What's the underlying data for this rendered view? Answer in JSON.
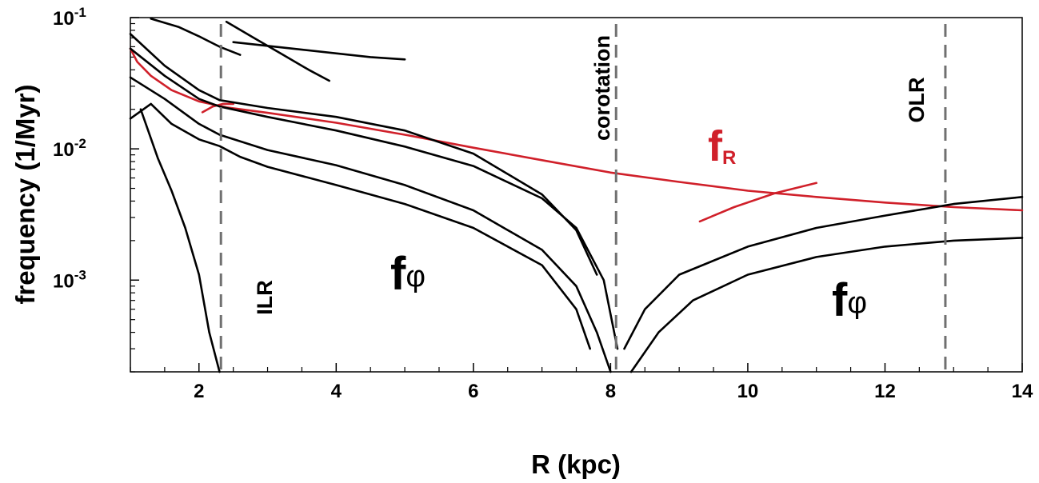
{
  "chart_data": {
    "type": "line",
    "xlabel": "R (kpc)",
    "ylabel": "frequency (1/Myr)",
    "xlim": [
      1,
      14
    ],
    "ylim": [
      0.0002,
      0.1
    ],
    "yscale": "log",
    "xticks": [
      {
        "value": 2,
        "label": "2"
      },
      {
        "value": 4,
        "label": "4"
      },
      {
        "value": 6,
        "label": "6"
      },
      {
        "value": 8,
        "label": "8"
      },
      {
        "value": 10,
        "label": "10"
      },
      {
        "value": 12,
        "label": "12"
      },
      {
        "value": 14,
        "label": "14"
      }
    ],
    "yticks": [
      {
        "value": 0.1,
        "base": "10",
        "exp": "-1"
      },
      {
        "value": 0.01,
        "base": "10",
        "exp": "-2"
      },
      {
        "value": 0.001,
        "base": "10",
        "exp": "-3"
      }
    ],
    "colors": {
      "f_phi": "#000000",
      "f_R": "#d0202a",
      "resonance": "#707070"
    },
    "resonances": [
      {
        "x": 2.32,
        "label": "ILR"
      },
      {
        "x": 8.08,
        "label": "corotation"
      },
      {
        "x": 12.88,
        "label": "OLR"
      }
    ],
    "annotations": [
      {
        "key": "fr",
        "main": "f",
        "sub": "R",
        "color": "#d0202a"
      },
      {
        "key": "fphi1",
        "main": "f",
        "sub": "φ",
        "color": "#000000"
      },
      {
        "key": "fphi2",
        "main": "f",
        "sub": "φ",
        "color": "#000000"
      }
    ],
    "series": [
      {
        "color": "#d0202a",
        "x": [
          1,
          1.1,
          1.3,
          1.6,
          2.0,
          2.4,
          3,
          4,
          5,
          6,
          7,
          8,
          9,
          10,
          11,
          12,
          13,
          14
        ],
        "y": [
          0.058,
          0.046,
          0.036,
          0.028,
          0.023,
          0.0207,
          0.0188,
          0.0158,
          0.0128,
          0.0102,
          0.0082,
          0.0066,
          0.0056,
          0.0048,
          0.0043,
          0.0039,
          0.0036,
          0.0034
        ]
      },
      {
        "color": "#d0202a",
        "x": [
          9.3,
          9.8,
          10.4,
          11.0
        ],
        "y": [
          0.0028,
          0.0036,
          0.0046,
          0.0055
        ]
      },
      {
        "color": "#d0202a",
        "x": [
          2.05,
          2.2,
          2.35,
          2.5
        ],
        "y": [
          0.019,
          0.021,
          0.022,
          0.022
        ]
      },
      {
        "color": "#000000",
        "x": [
          2.4,
          2.8,
          3.2,
          3.6,
          3.9
        ],
        "y": [
          0.093,
          0.07,
          0.053,
          0.04,
          0.033
        ]
      },
      {
        "color": "#000000",
        "x": [
          1.3,
          1.7,
          2.0,
          2.3,
          2.6
        ],
        "y": [
          0.098,
          0.085,
          0.072,
          0.06,
          0.052
        ]
      },
      {
        "color": "#000000",
        "x": [
          2.5,
          3.5,
          4.5,
          5.0
        ],
        "y": [
          0.065,
          0.057,
          0.05,
          0.048
        ]
      },
      {
        "color": "#000000",
        "x": [
          1,
          1.5,
          2,
          2.3,
          3,
          4,
          5,
          6,
          7,
          7.5,
          7.8
        ],
        "y": [
          0.075,
          0.043,
          0.028,
          0.0235,
          0.0205,
          0.0175,
          0.0138,
          0.0092,
          0.0045,
          0.0024,
          0.0011
        ]
      },
      {
        "color": "#000000",
        "x": [
          1,
          1.5,
          2,
          2.3,
          3,
          4,
          5,
          6,
          7,
          7.5,
          7.9,
          8.1
        ],
        "y": [
          0.058,
          0.036,
          0.024,
          0.021,
          0.0175,
          0.0138,
          0.0104,
          0.0074,
          0.0042,
          0.0025,
          0.001,
          0.0003
        ]
      },
      {
        "color": "#000000",
        "x": [
          1,
          1.5,
          2,
          2.3,
          3,
          4,
          5,
          6,
          7,
          7.5,
          7.8,
          8.0
        ],
        "y": [
          0.035,
          0.024,
          0.0155,
          0.0128,
          0.0098,
          0.0075,
          0.0053,
          0.0034,
          0.0017,
          0.0009,
          0.0004,
          0.0002
        ]
      },
      {
        "color": "#000000",
        "x": [
          1,
          1.3,
          1.6,
          2,
          2.3,
          2.6,
          3,
          4,
          5,
          6,
          7,
          7.5,
          7.7
        ],
        "y": [
          0.017,
          0.022,
          0.0155,
          0.0118,
          0.0105,
          0.0087,
          0.0073,
          0.0053,
          0.0038,
          0.0025,
          0.0013,
          0.0006,
          0.0003
        ]
      },
      {
        "color": "#000000",
        "x": [
          1.15,
          1.4,
          1.6,
          1.8,
          2.0,
          2.15,
          2.3
        ],
        "y": [
          0.02,
          0.0085,
          0.0048,
          0.0025,
          0.0011,
          0.0004,
          0.0002
        ]
      },
      {
        "color": "#000000",
        "x": [
          8.2,
          8.5,
          9,
          10,
          11,
          12,
          13,
          14
        ],
        "y": [
          0.0003,
          0.0006,
          0.0011,
          0.0018,
          0.0025,
          0.0031,
          0.0038,
          0.0043
        ]
      },
      {
        "color": "#000000",
        "x": [
          8.3,
          8.7,
          9.2,
          10,
          11,
          12,
          13,
          14
        ],
        "y": [
          0.0002,
          0.0004,
          0.0007,
          0.0011,
          0.0015,
          0.0018,
          0.002,
          0.0021
        ]
      }
    ]
  }
}
